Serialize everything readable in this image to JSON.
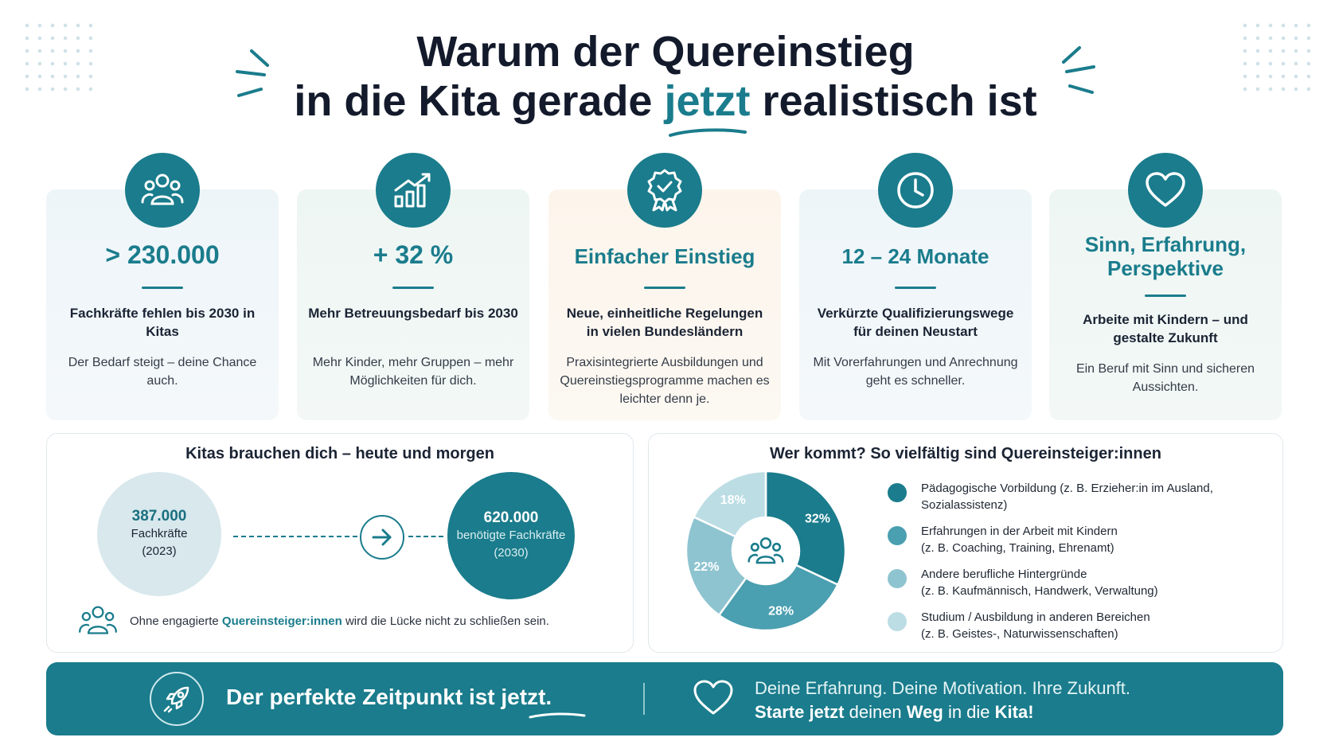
{
  "title": {
    "line1": "Warum der Quereinstieg",
    "line2_pre": "in die Kita gerade ",
    "line2_highlight": "jetzt",
    "line2_post": " realistisch ist"
  },
  "cards": [
    {
      "icon": "people-icon",
      "stat": "> 230.000",
      "sub": "Fachkräfte fehlen bis 2030 in Kitas",
      "desc": "Der Bedarf steigt – deine Chance auch."
    },
    {
      "icon": "growth-chart-icon",
      "stat": "+ 32 %",
      "sub": "Mehr Betreuungsbedarf bis 2030",
      "desc": "Mehr Kinder, mehr Gruppen – mehr Möglichkeiten für dich."
    },
    {
      "icon": "badge-check-icon",
      "stat": "Einfacher Einstieg",
      "sub": "Neue, einheitliche Regelungen in vielen Bundesländern",
      "desc": "Praxisintegrierte Ausbildungen und Quereinstiegsprogramme machen es leichter denn je."
    },
    {
      "icon": "clock-icon",
      "stat": "12 – 24 Monate",
      "sub": "Verkürzte Qualifizierungswege für deinen Neustart",
      "desc": "Mit Vorerfahrungen und Anrechnung geht es schneller."
    },
    {
      "icon": "heart-icon",
      "stat": "Sinn, Erfahrung, Perspektive",
      "sub": "Arbeite mit Kindern – und gestalte Zukunft",
      "desc": "Ein Beruf mit Sinn und sicheren Aussichten."
    }
  ],
  "gap_panel": {
    "title": "Kitas brauchen dich – heute und morgen",
    "current": {
      "value": "387.000",
      "label_line1": "Fachkräfte",
      "label_line2": "(2023)"
    },
    "needed": {
      "value": "620.000",
      "label_line1": "benötigte Fachkräfte",
      "label_line2": "(2030)"
    },
    "note_pre": "Ohne engagierte ",
    "note_highlight": "Quereinsteiger:innen",
    "note_post": " wird die Lücke nicht zu schließen sein."
  },
  "chart_data": {
    "type": "pie",
    "title": "Wer kommt? So vielfältig sind Quereinsteiger:innen",
    "slices": [
      {
        "label": "Pädagogische Vorbildung (z. B. Erzieher:in im Ausland, Sozialassistenz)",
        "value": 32,
        "display": "32%",
        "color": "#1a7c8c"
      },
      {
        "label": "Erfahrungen in der Arbeit mit Kindern (z. B. Coaching, Training, Ehrenamt)",
        "value": 28,
        "display": "28%",
        "color": "#4a9fb0"
      },
      {
        "label": "Andere berufliche Hintergründe (z. B. Kaufmännisch, Handwerk, Verwaltung)",
        "value": 22,
        "display": "22%",
        "color": "#8ec4d0"
      },
      {
        "label": "Studium / Ausbildung in anderen Bereichen (z. B. Geistes-, Naturwissenschaften)",
        "value": 18,
        "display": "18%",
        "color": "#bcdde4"
      }
    ],
    "legend": [
      {
        "line1": "Pädagogische Vorbildung (z. B. Erzieher:in im Ausland,",
        "line2": "Sozialassistenz)"
      },
      {
        "line1": "Erfahrungen in der Arbeit mit Kindern",
        "line2": "(z. B. Coaching, Training, Ehrenamt)"
      },
      {
        "line1": "Andere berufliche Hintergründe",
        "line2": "(z. B. Kaufmännisch, Handwerk, Verwaltung)"
      },
      {
        "line1": "Studium / Ausbildung in anderen Bereichen",
        "line2": "(z. B. Geistes-, Naturwissenschaften)"
      }
    ],
    "legend_placement": "right"
  },
  "banner": {
    "left_pre": "Der perfekte Zeitpunkt ist ",
    "left_highlight": "jetzt.",
    "right_line1": "Deine Erfahrung. Deine Motivation. Ihre Zukunft.",
    "right_line2_b1": "Starte jetzt",
    "right_line2_m1": " deinen ",
    "right_line2_b2": "Weg",
    "right_line2_m2": " in die ",
    "right_line2_b3": "Kita!"
  },
  "colors": {
    "accent": "#1a7c8c",
    "text": "#131a2b"
  }
}
